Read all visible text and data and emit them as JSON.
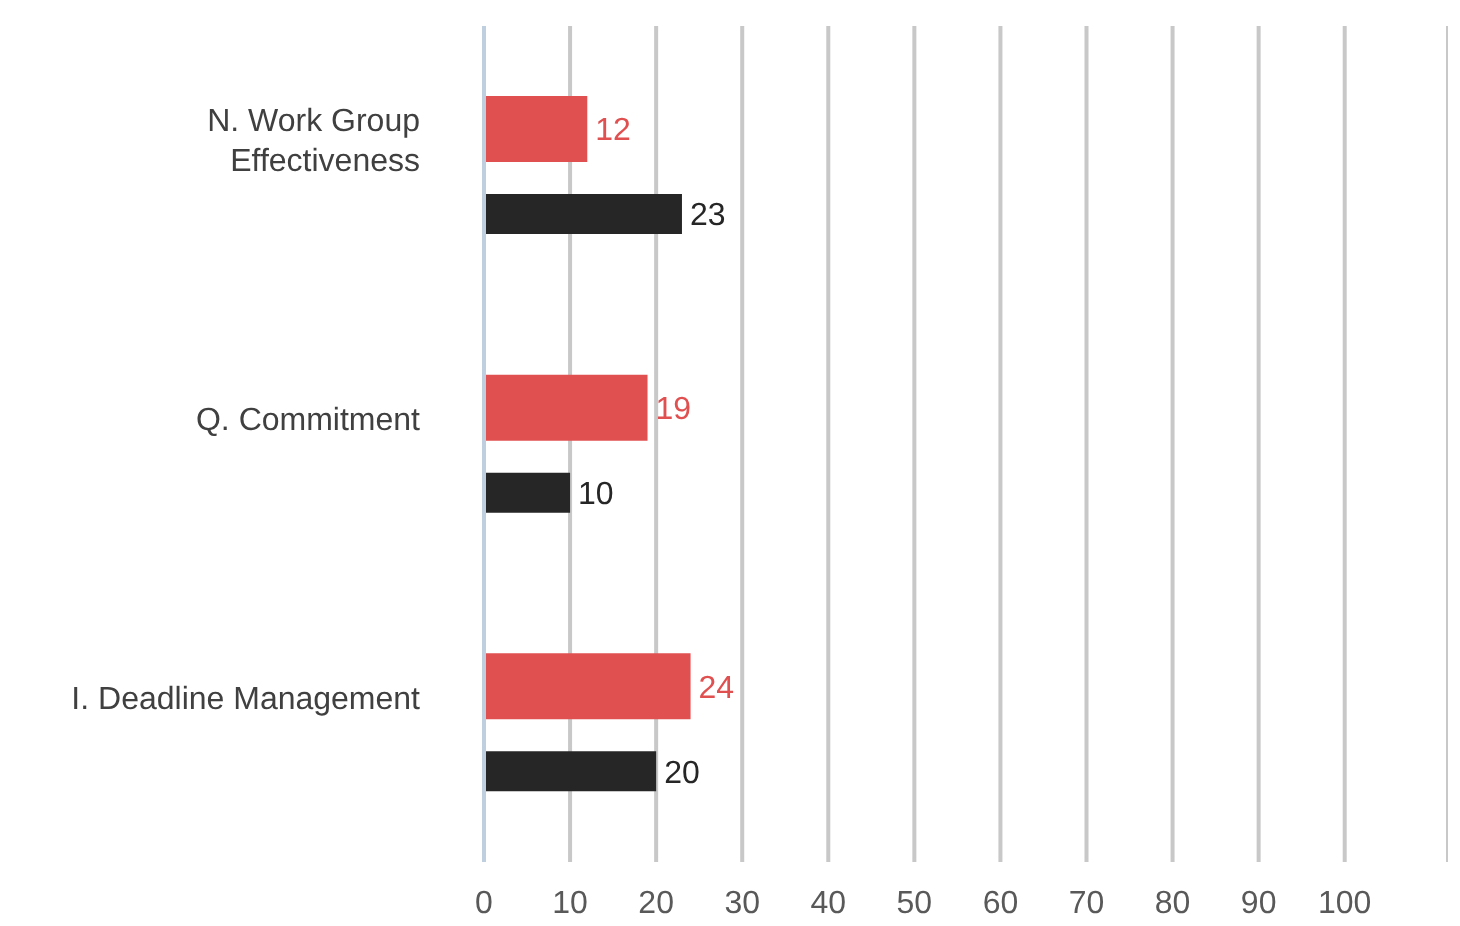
{
  "chart_data": {
    "type": "bar",
    "orientation": "horizontal",
    "categories": [
      "N. Work Group Effectiveness",
      "Q. Commitment",
      "I. Deadline Management"
    ],
    "series": [
      {
        "color": "#e05050",
        "values": [
          12,
          19,
          24
        ]
      },
      {
        "color": "#262626",
        "values": [
          23,
          10,
          20
        ]
      }
    ],
    "xlim": [
      0,
      112
    ],
    "xticks": [
      0,
      10,
      20,
      30,
      40,
      50,
      60,
      70,
      80,
      90,
      100
    ],
    "grid": "x",
    "data_labels": true,
    "legend": false
  }
}
